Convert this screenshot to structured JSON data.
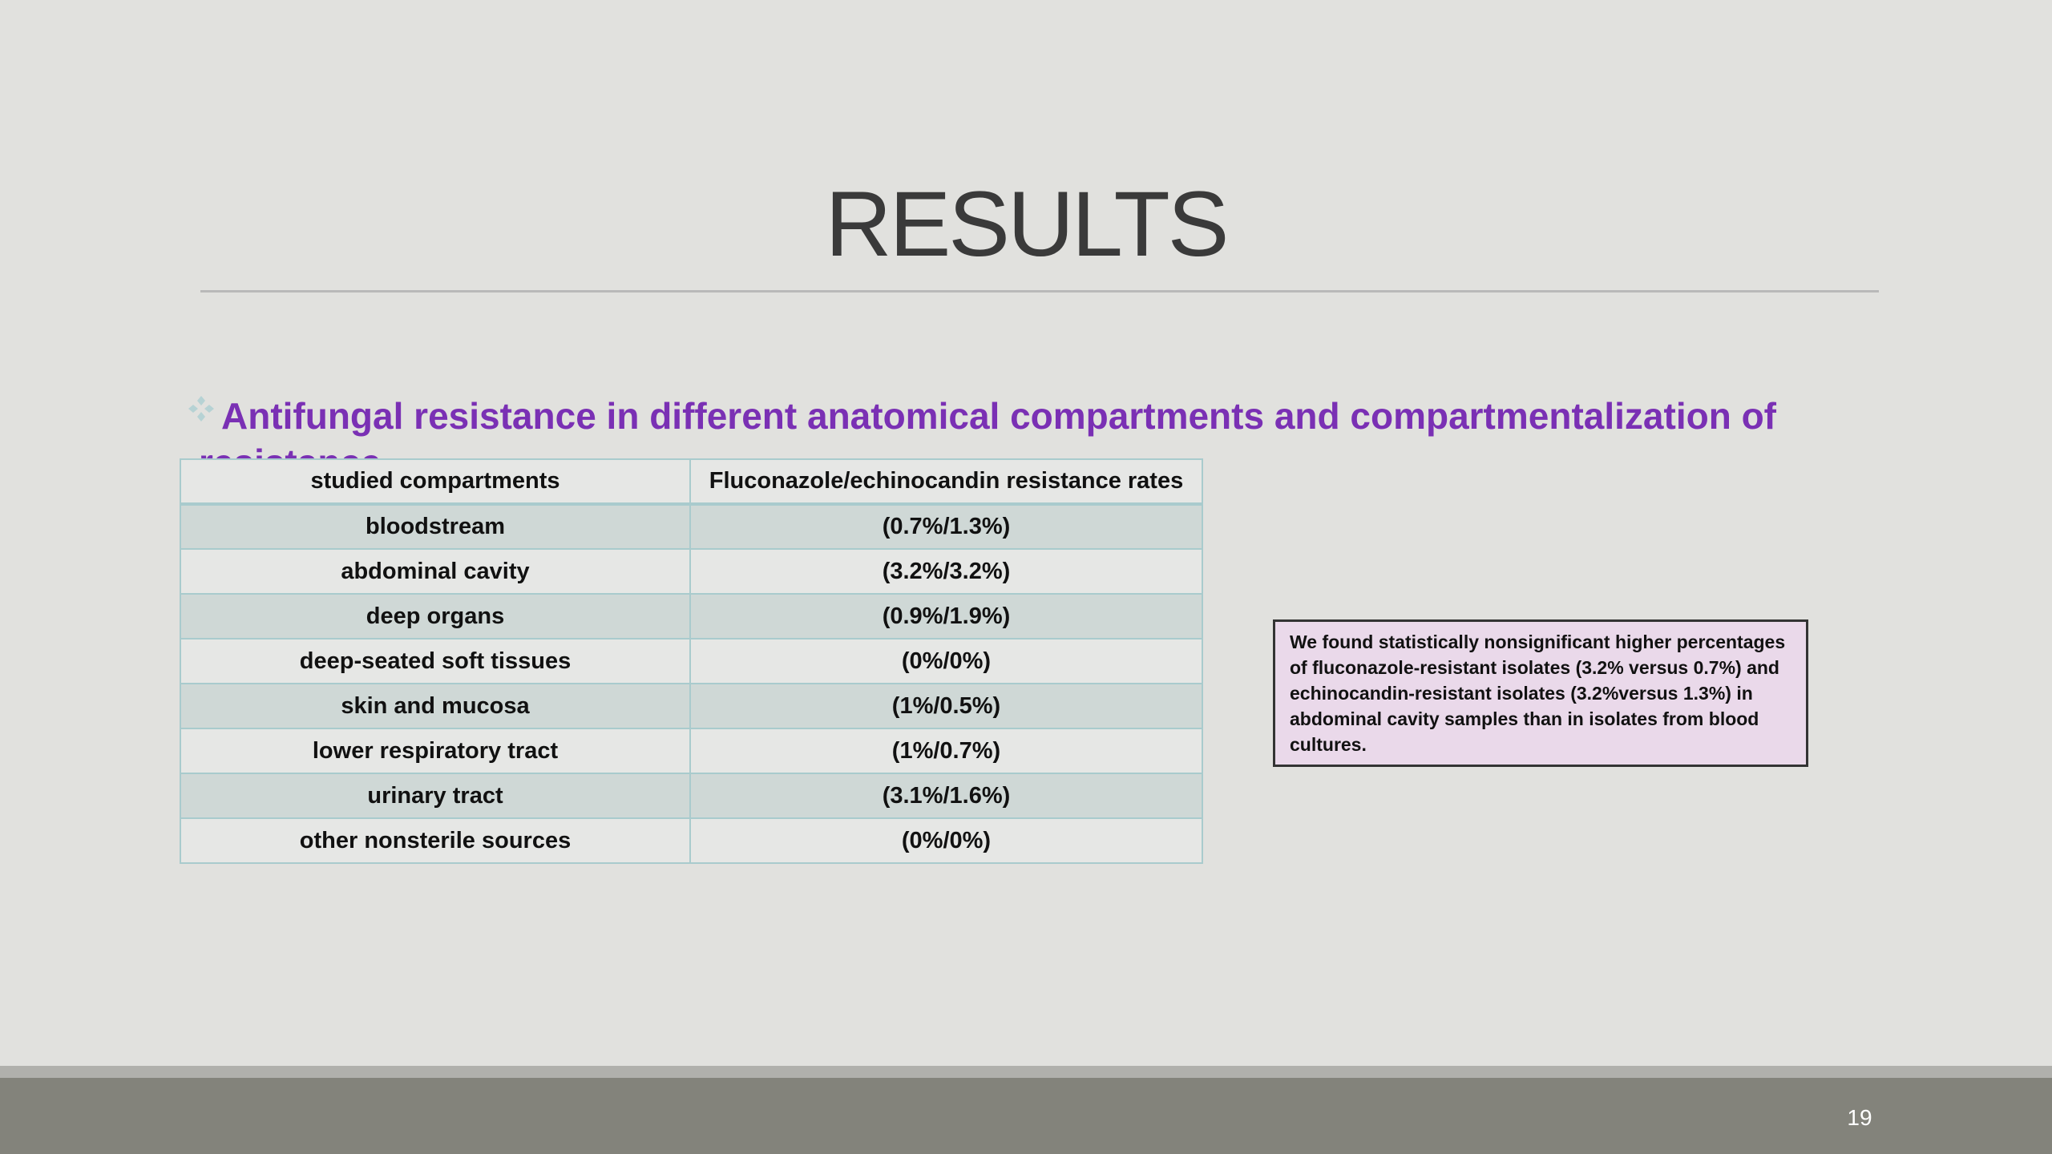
{
  "slide": {
    "title": "RESULTS",
    "subtitle": "Antifungal resistance in different anatomical compartments and compartmentalization of resistance.",
    "bullet_icon": "four-diamond-bullet-icon",
    "page_number": "19"
  },
  "table": {
    "headers": [
      "studied compartments",
      "Fluconazole/echinocandin resistance rates"
    ],
    "rows": [
      [
        "bloodstream",
        "(0.7%/1.3%)"
      ],
      [
        "abdominal cavity",
        "(3.2%/3.2%)"
      ],
      [
        "deep organs",
        "(0.9%/1.9%)"
      ],
      [
        "deep-seated soft tissues",
        "(0%/0%)"
      ],
      [
        "skin and mucosa",
        "(1%/0.5%)"
      ],
      [
        "lower respiratory tract",
        "(1%/0.7%)"
      ],
      [
        "urinary tract",
        "(3.1%/1.6%)"
      ],
      [
        "other nonsterile sources",
        "(0%/0%)"
      ]
    ]
  },
  "note": {
    "text": "We found statistically nonsignificant higher percentages of fluconazole-resistant isolates (3.2% versus 0.7%) and echinocandin-resistant isolates (3.2%versus 1.3%) in abdominal cavity samples than in isolates from blood cultures."
  },
  "colors": {
    "background": "#e1e1de",
    "title": "#3a3a3a",
    "subtitle": "#7a30b4",
    "table_border": "#a9cbcd",
    "table_row_shaded": "#cfd8d6",
    "note_background": "#ead9ea",
    "footer": "#83837b"
  }
}
